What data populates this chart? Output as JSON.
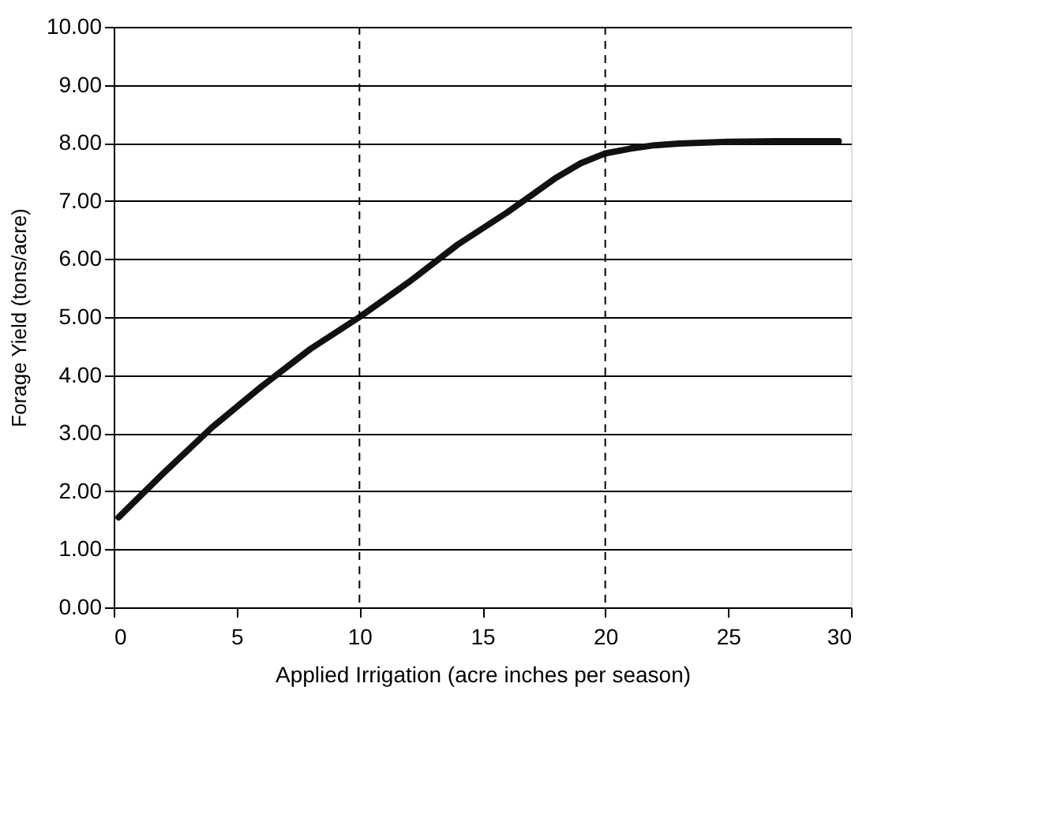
{
  "chart_data": {
    "type": "line",
    "xlabel": "Applied Irrigation (acre inches per season)",
    "ylabel": "Forage Yield (tons/acre)",
    "x": [
      0.2,
      2,
      4,
      6,
      8,
      10,
      12,
      14,
      16,
      17,
      18,
      19,
      20,
      21,
      22,
      23,
      25,
      27,
      29.5
    ],
    "series": [
      {
        "color": "#111111",
        "values": [
          1.55,
          2.3,
          3.1,
          3.8,
          4.45,
          5.0,
          5.6,
          6.25,
          6.8,
          7.1,
          7.4,
          7.65,
          7.82,
          7.9,
          7.96,
          7.99,
          8.02,
          8.03,
          8.03
        ]
      }
    ],
    "xlim": [
      0,
      30
    ],
    "xticks": [
      0,
      5,
      10,
      15,
      20,
      25,
      30
    ],
    "ylim": [
      0,
      10
    ],
    "yticks": [
      {
        "value": 0,
        "label": "0.00"
      },
      {
        "value": 1,
        "label": "1.00"
      },
      {
        "value": 2,
        "label": "2.00"
      },
      {
        "value": 3,
        "label": "3.00"
      },
      {
        "value": 4,
        "label": "4.00"
      },
      {
        "value": 5,
        "label": "5.00"
      },
      {
        "value": 6,
        "label": "6.00"
      },
      {
        "value": 7,
        "label": "7.00"
      },
      {
        "value": 8,
        "label": "8.00"
      },
      {
        "value": 9,
        "label": "9.00"
      },
      {
        "value": 10,
        "label": "10.00"
      }
    ],
    "grid": "y",
    "marker": "none",
    "line_style": "solid",
    "ref_lines": [
      {
        "axis": "x",
        "value": 10,
        "line_style": "dashed"
      },
      {
        "axis": "x",
        "value": 20,
        "line_style": "dashed"
      }
    ]
  }
}
